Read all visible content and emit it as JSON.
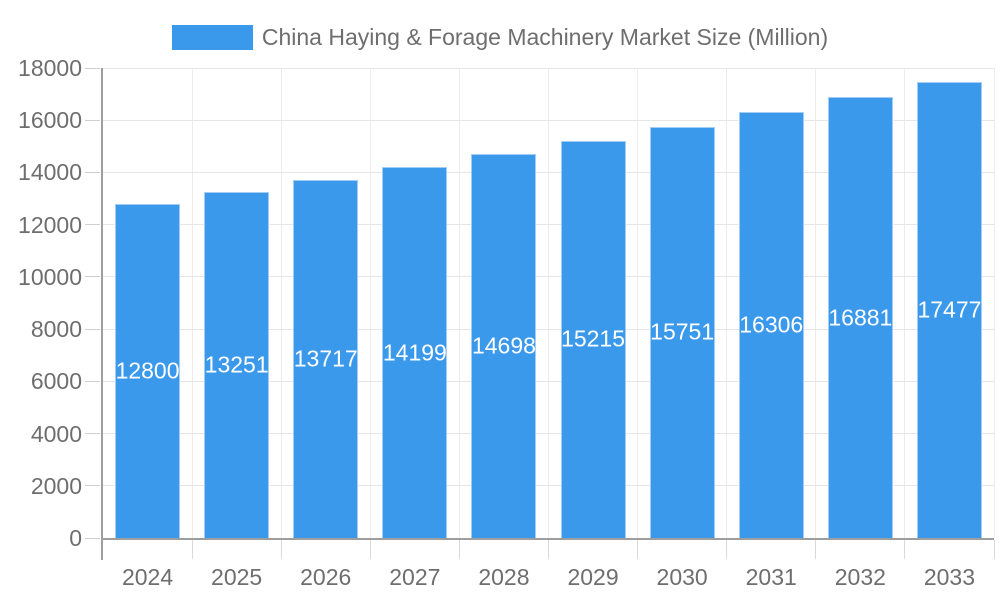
{
  "chart_data": {
    "type": "bar",
    "title": "China Haying & Forage Machinery Market Size (Million)",
    "categories": [
      "2024",
      "2025",
      "2026",
      "2027",
      "2028",
      "2029",
      "2030",
      "2031",
      "2032",
      "2033"
    ],
    "values": [
      12800,
      13251,
      13717,
      14199,
      14698,
      15215,
      15751,
      16306,
      16881,
      17477
    ],
    "series_name": "China Haying & Forage Machinery Market Size (Million)",
    "xlabel": "",
    "ylabel": "",
    "ylim": [
      0,
      18000
    ],
    "ytick_step": 2000,
    "yticks": [
      0,
      2000,
      4000,
      6000,
      8000,
      10000,
      12000,
      14000,
      16000,
      18000
    ],
    "grid": true,
    "legend_position": "top-center",
    "value_labels_position": "inside-middle",
    "colors": {
      "bar": "#3B99EC",
      "bar_border": "#A3CDF4",
      "grid_line": "#E6E6E6",
      "category_split_line": "#ECECEC",
      "axis_line": "#9E9E9E",
      "tick": "#CFCFCF",
      "axis_text": "#6E6E6E",
      "value_label": "#FFFFFF",
      "background": "#FFFFFF"
    }
  }
}
